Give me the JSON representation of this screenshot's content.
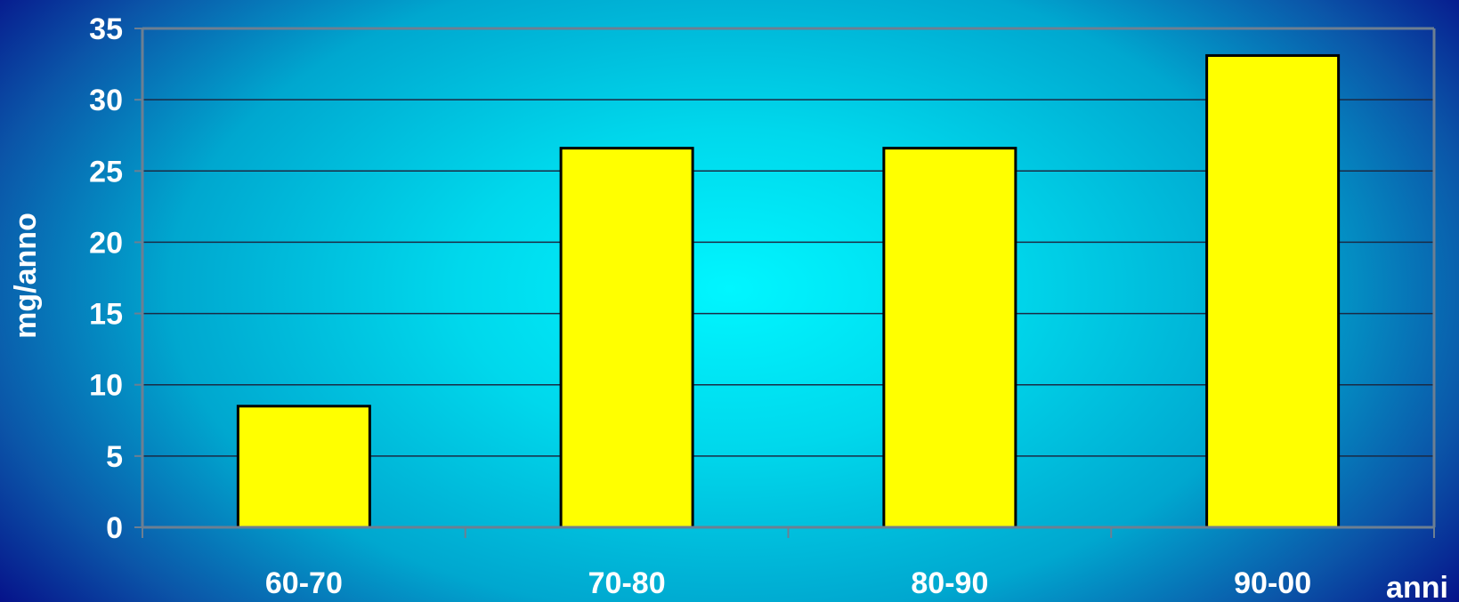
{
  "chart_data": {
    "type": "bar",
    "title": "",
    "xlabel": "anni",
    "ylabel": "mg/anno",
    "categories": [
      "60-70",
      "70-80",
      "80-90",
      "90-00"
    ],
    "values": [
      8.5,
      26.6,
      26.6,
      33.1
    ],
    "ylim": [
      0,
      35
    ],
    "yticks": [
      0,
      5,
      10,
      15,
      20,
      25,
      30,
      35
    ],
    "grid": true,
    "legend": "none",
    "colors": {
      "bar_fill": "#ffff00",
      "bar_stroke": "#000000",
      "grid": "#1a2a44",
      "axis": "#6d7f92",
      "text": "#ffffff"
    }
  }
}
